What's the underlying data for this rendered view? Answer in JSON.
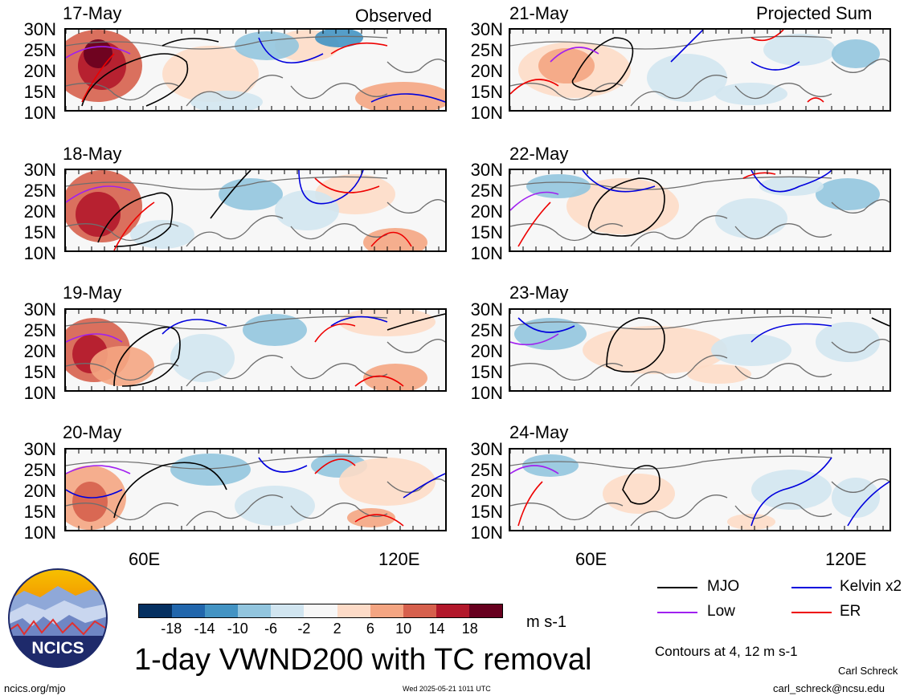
{
  "columns": {
    "left_title": "Observed",
    "right_title": "Projected Sum"
  },
  "left_dates": [
    "17-May",
    "18-May",
    "19-May",
    "20-May"
  ],
  "right_dates": [
    "21-May",
    "22-May",
    "23-May",
    "24-May"
  ],
  "lat_labels": [
    "30N",
    "25N",
    "20N",
    "15N",
    "10N"
  ],
  "lon_labels": [
    "60E",
    "120E"
  ],
  "colorbar": {
    "colors": [
      "#053061",
      "#2166ac",
      "#4393c3",
      "#92c5de",
      "#d1e5f0",
      "#f7f7f7",
      "#fddbc7",
      "#f4a582",
      "#d6604d",
      "#b2182b",
      "#67001f"
    ],
    "labels": [
      "-18",
      "-14",
      "-10",
      "-6",
      "-2",
      "2",
      "6",
      "10",
      "14",
      "18"
    ],
    "units": "m s-1"
  },
  "title": "1-day VWND200 with TC removal",
  "legend": {
    "items": [
      {
        "label": "MJO",
        "color": "#000000"
      },
      {
        "label": "Kelvin x2",
        "color": "#0000dd"
      },
      {
        "label": "Low",
        "color": "#a020f0"
      },
      {
        "label": "ER",
        "color": "#ee0000"
      }
    ],
    "contours_note": "Contours at 4, 12 m s-1"
  },
  "logo": {
    "text": "NCICS"
  },
  "footer": {
    "url": "ncics.org/mjo",
    "timestamp": "Wed 2025-05-21 1011 UTC",
    "author": "Carl Schreck",
    "email": "carl_schreck@ncsu.edu"
  }
}
